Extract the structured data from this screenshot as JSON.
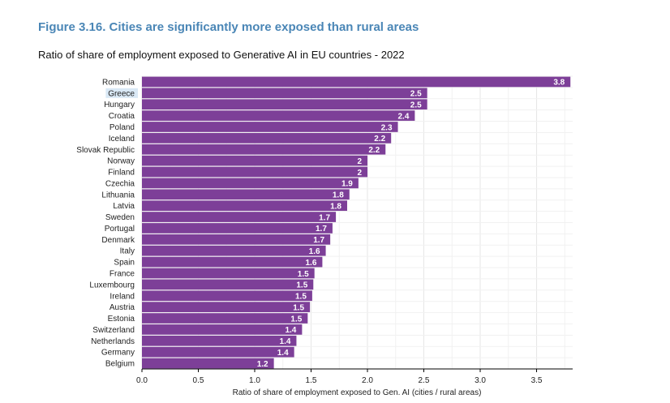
{
  "figure": {
    "title": "Figure 3.16. Cities are significantly more exposed than rural areas",
    "subtitle": "Ratio of share of employment exposed to Generative AI in EU countries - 2022"
  },
  "colors": {
    "bar": "#7d3f98",
    "title": "#4a86b6",
    "grid": "#e6e6e6",
    "highlight_label_bg": "#d9e8f5"
  },
  "chart_data": {
    "type": "bar",
    "orientation": "horizontal",
    "categories": [
      "Romania",
      "Greece",
      "Hungary",
      "Croatia",
      "Poland",
      "Iceland",
      "Slovak Republic",
      "Norway",
      "Finland",
      "Czechia",
      "Lithuania",
      "Latvia",
      "Sweden",
      "Portugal",
      "Denmark",
      "Italy",
      "Spain",
      "France",
      "Luxembourg",
      "Ireland",
      "Austria",
      "Estonia",
      "Switzerland",
      "Netherlands",
      "Germany",
      "Belgium"
    ],
    "values": [
      3.8,
      2.53,
      2.53,
      2.42,
      2.27,
      2.21,
      2.16,
      2.0,
      2.0,
      1.92,
      1.84,
      1.82,
      1.72,
      1.69,
      1.67,
      1.63,
      1.6,
      1.53,
      1.52,
      1.51,
      1.49,
      1.47,
      1.42,
      1.37,
      1.35,
      1.17
    ],
    "data_labels": [
      "3.8",
      "2.5",
      "2.5",
      "2.4",
      "2.3",
      "2.2",
      "2.2",
      "2",
      "2",
      "1.9",
      "1.8",
      "1.8",
      "1.7",
      "1.7",
      "1.7",
      "1.6",
      "1.6",
      "1.5",
      "1.5",
      "1.5",
      "1.5",
      "1.5",
      "1.4",
      "1.4",
      "1.4",
      "1.2"
    ],
    "highlighted_category": "Greece",
    "xlabel": "Ratio of share of employment exposed to Gen. AI (cities / rural areas)",
    "ylabel": "",
    "xlim": [
      0,
      3.82
    ],
    "xticks": [
      0,
      0.5,
      1,
      1.5,
      2,
      2.5,
      3,
      3.5
    ],
    "xtick_labels": [
      "0.0",
      "0.5",
      "1.0",
      "1.5",
      "2.0",
      "2.5",
      "3.0",
      "3.5"
    ],
    "grid": true
  }
}
